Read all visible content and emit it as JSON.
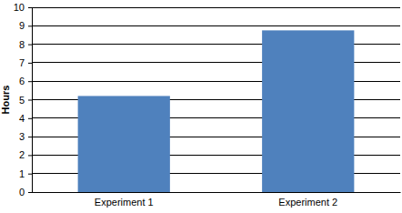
{
  "chart_data": {
    "type": "bar",
    "y_label": "Hours",
    "categories": [
      "Experiment 1",
      "Experiment 2"
    ],
    "values": [
      5.2,
      8.75
    ],
    "color": "#4f81bd",
    "ylim": [
      0,
      10
    ],
    "yticks": [
      0,
      1,
      2,
      3,
      4,
      5,
      6,
      7,
      8,
      9,
      10
    ],
    "grid": true
  }
}
